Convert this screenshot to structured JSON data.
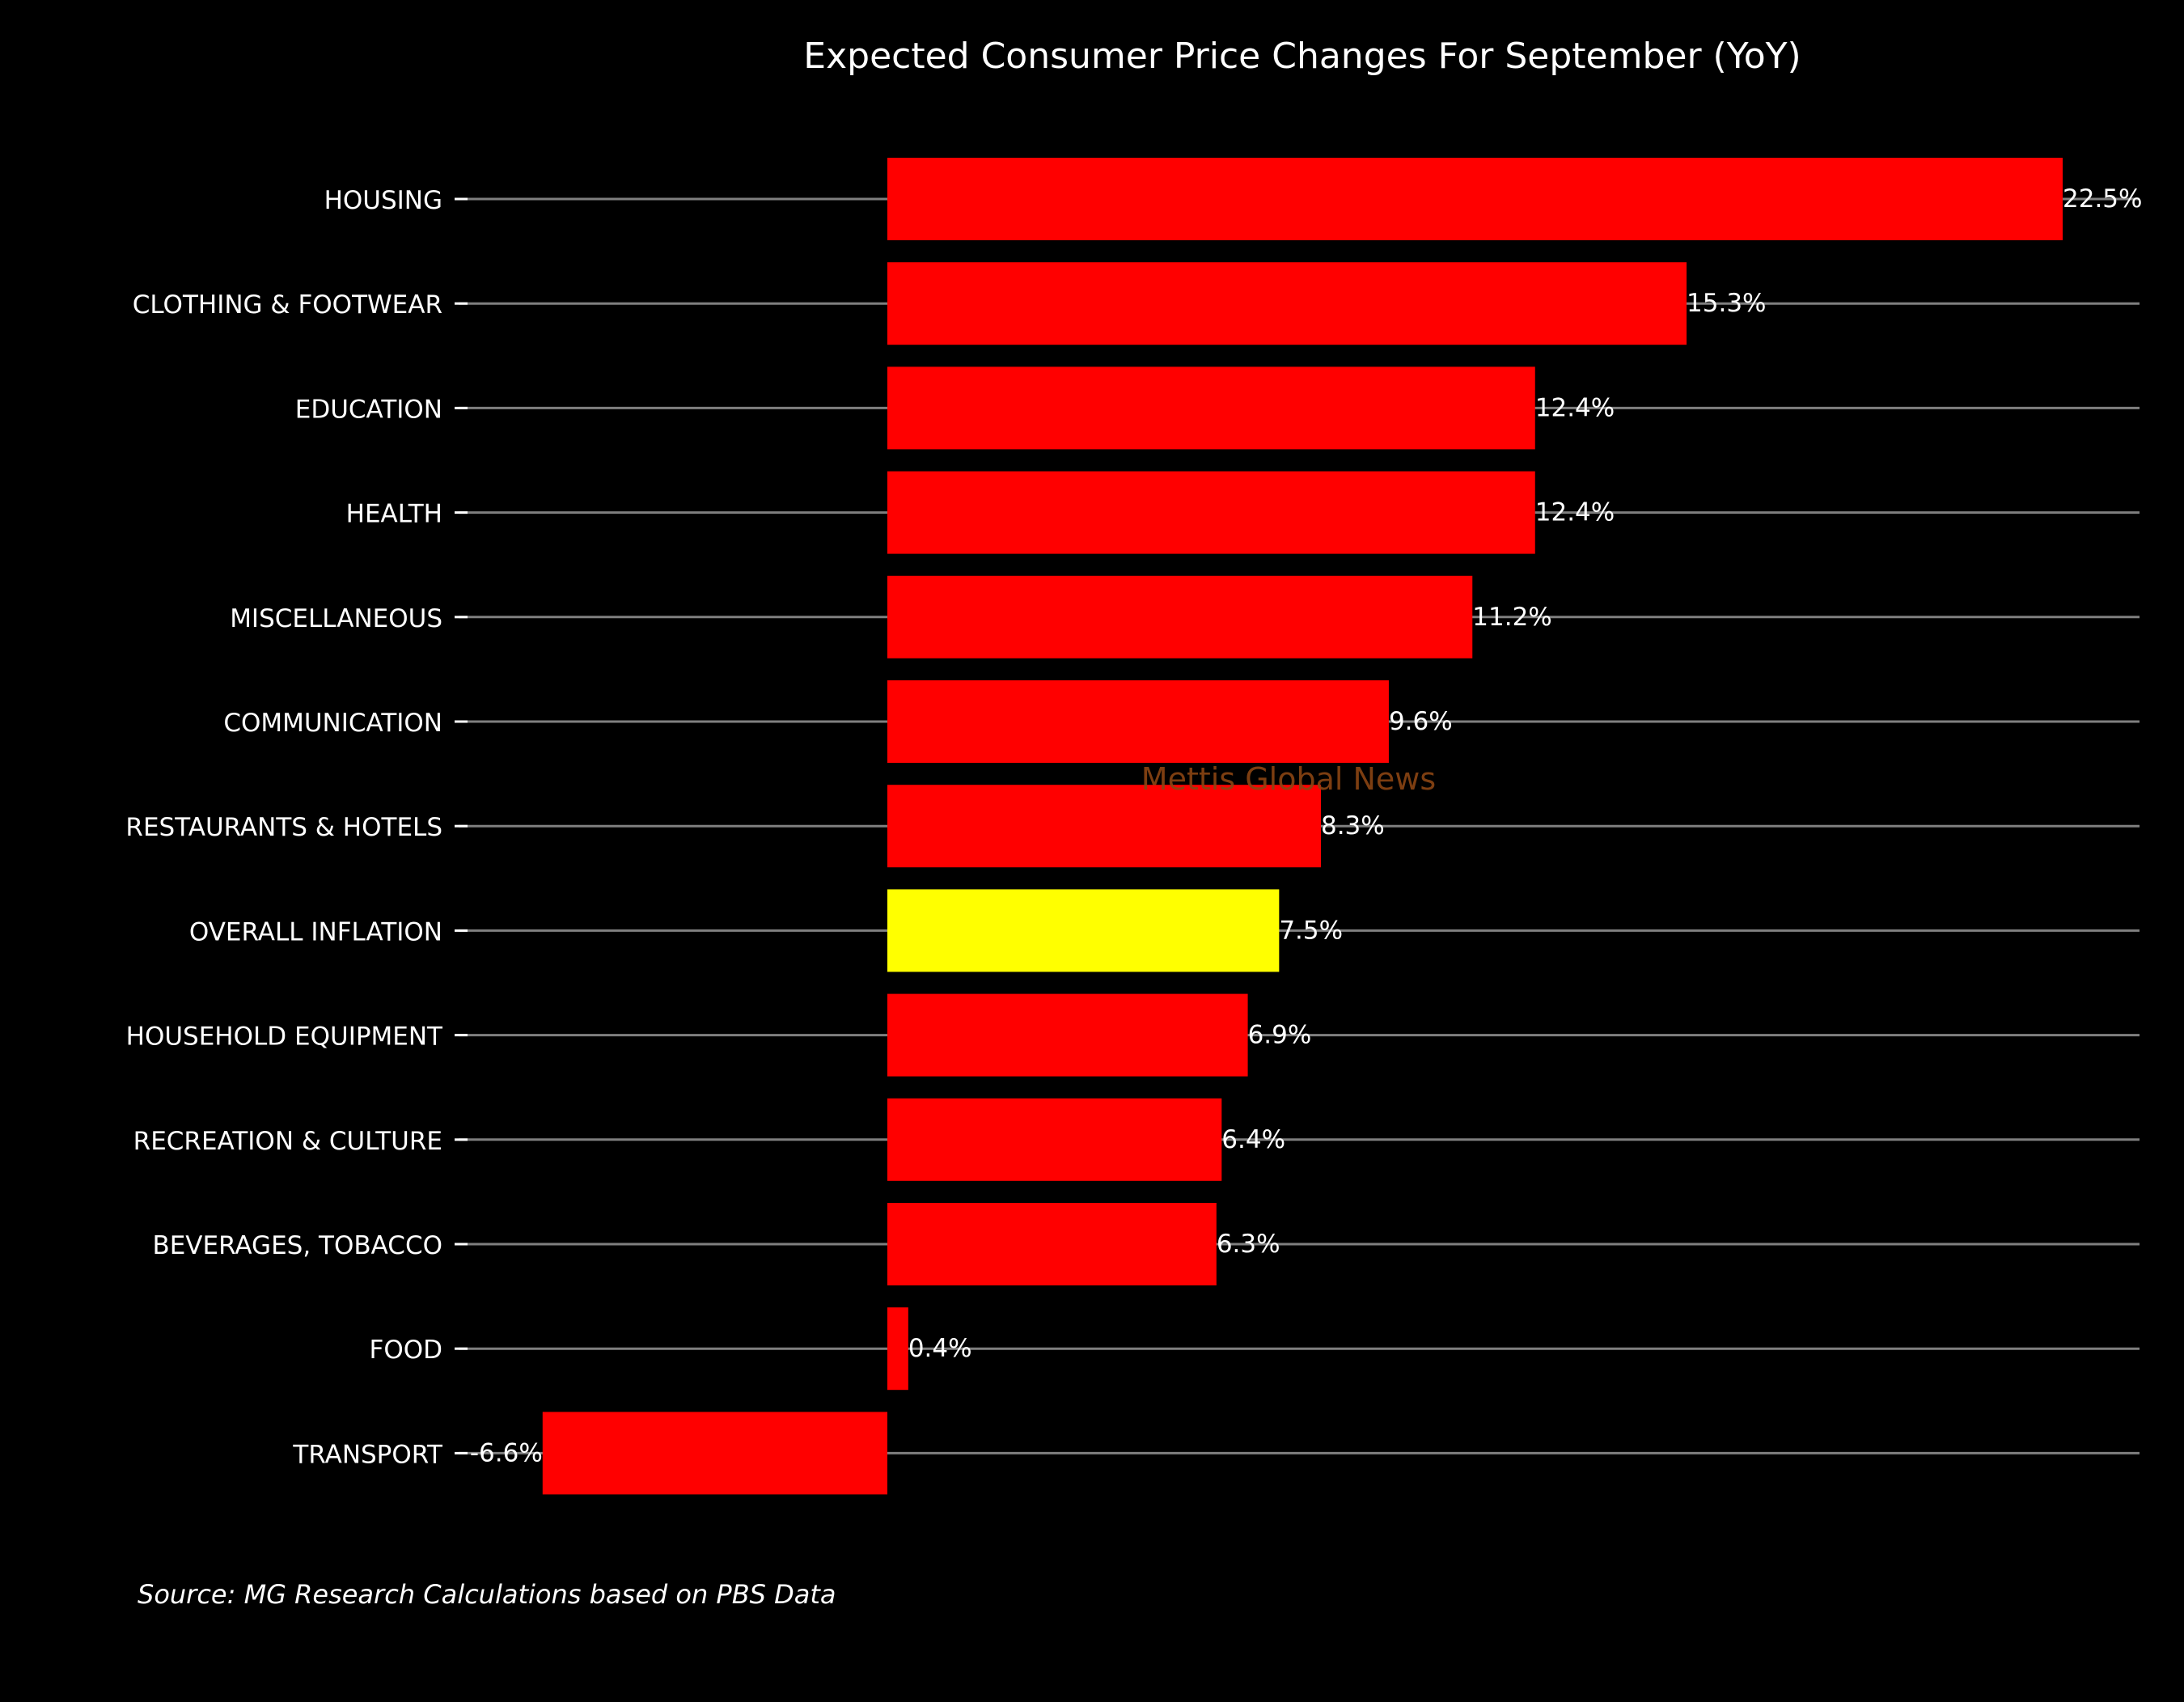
{
  "chart_data": {
    "type": "bar",
    "orientation": "horizontal",
    "title": "Expected Consumer Price Changes For September (YoY)",
    "source": "Source: MG Research Calculations based on PBS Data",
    "watermark": "Mettis Global News",
    "categories": [
      "HOUSING",
      "CLOTHING & FOOTWEAR",
      "EDUCATION",
      "HEALTH",
      "MISCELLANEOUS",
      "COMMUNICATION",
      "RESTAURANTS & HOTELS",
      "OVERALL INFLATION",
      "HOUSEHOLD EQUIPMENT",
      "RECREATION & CULTURE",
      "BEVERAGES, TOBACCO",
      "FOOD",
      "TRANSPORT"
    ],
    "values": [
      22.5,
      15.3,
      12.4,
      12.4,
      11.2,
      9.6,
      8.3,
      7.5,
      6.9,
      6.4,
      6.3,
      0.4,
      -6.6
    ],
    "value_labels": [
      "22.5%",
      "15.3%",
      "12.4%",
      "12.4%",
      "11.2%",
      "9.6%",
      "8.3%",
      "7.5%",
      "6.9%",
      "6.4%",
      "6.3%",
      "0.4%",
      "-6.6%"
    ],
    "highlight_category": "OVERALL INFLATION",
    "xlim": [
      -8.2,
      24
    ],
    "xaxis_visible": false,
    "grid": "horizontal lines at each category",
    "colors": {
      "background": "#000000",
      "bar": "#ff0000",
      "highlight": "#ffff00",
      "text": "#ffffff",
      "grid": "#7f7f7f",
      "watermark": "#8b4513"
    }
  }
}
